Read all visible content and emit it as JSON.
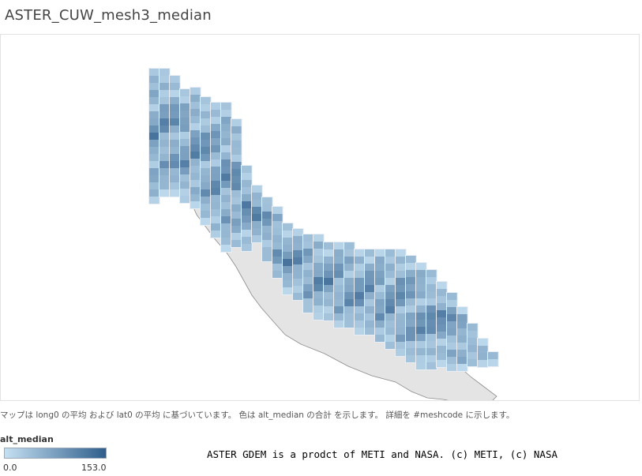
{
  "title": "ASTER_CUW_mesh3_median",
  "caption": "マップは long0 の平均 および lat0 の平均 に基づいています。 色は alt_median の合計 を示します。 詳細を #meshcode に示します。",
  "legend": {
    "title": "alt_median",
    "min_label": "0.0",
    "max_label": "153.0",
    "color_low": "#c5e0f2",
    "color_high": "#2f5e8c"
  },
  "credit": "ASTER GDEM is a prodct of METI and NASA. (c) METI, (c) NASA",
  "colors": {
    "cell_border": "#e9eef4",
    "land": "#e4e4e4",
    "coastline": "#8a8a8a",
    "frame_border": "#e2e2e2"
  }
}
